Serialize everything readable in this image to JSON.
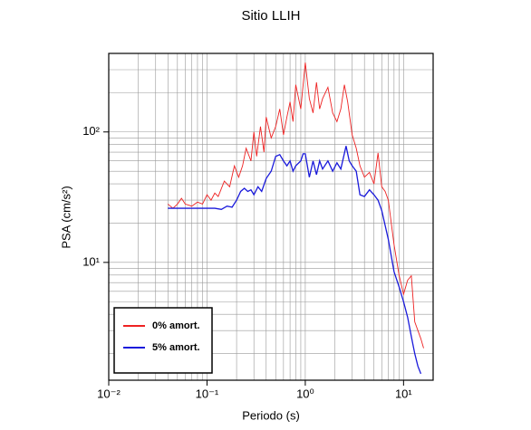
{
  "chart_data": {
    "type": "line",
    "title": "Sitio LLIH",
    "xlabel": "Periodo (s)",
    "ylabel": "PSA (cm/s²)",
    "xscale": "log",
    "yscale": "log",
    "grid": true,
    "legend": "lower left",
    "xlim": [
      0.01,
      20
    ],
    "ylim": [
      1.25,
      400
    ],
    "xticks": [
      {
        "value": 0.01,
        "label": "10⁻²"
      },
      {
        "value": 0.1,
        "label": "10⁻¹"
      },
      {
        "value": 1,
        "label": "10⁰"
      },
      {
        "value": 10,
        "label": "10¹"
      }
    ],
    "yticks": [
      {
        "value": 10,
        "label": "10¹"
      },
      {
        "value": 100,
        "label": "10²"
      }
    ],
    "minor_xticks": [
      0.02,
      0.03,
      0.04,
      0.05,
      0.06,
      0.07,
      0.08,
      0.09,
      0.2,
      0.3,
      0.4,
      0.5,
      0.6,
      0.7,
      0.8,
      0.9,
      2,
      3,
      4,
      5,
      6,
      7,
      8,
      9
    ],
    "minor_yticks": [
      2,
      3,
      4,
      5,
      6,
      7,
      8,
      9,
      20,
      30,
      40,
      50,
      60,
      70,
      80,
      90,
      200,
      300
    ],
    "series": [
      {
        "name": "0% amort.",
        "color": "#ee2222",
        "x": [
          0.04,
          0.045,
          0.05,
          0.055,
          0.06,
          0.07,
          0.08,
          0.09,
          0.1,
          0.11,
          0.12,
          0.13,
          0.15,
          0.17,
          0.19,
          0.21,
          0.23,
          0.25,
          0.28,
          0.3,
          0.32,
          0.35,
          0.38,
          0.4,
          0.45,
          0.5,
          0.55,
          0.6,
          0.65,
          0.7,
          0.75,
          0.8,
          0.9,
          1.0,
          1.1,
          1.2,
          1.3,
          1.4,
          1.5,
          1.7,
          1.9,
          2.1,
          2.3,
          2.5,
          2.7,
          3.0,
          3.3,
          3.6,
          4.0,
          4.5,
          5.0,
          5.5,
          6.0,
          6.5,
          7.0,
          8.0,
          9.0,
          10,
          11,
          12,
          13,
          15,
          16
        ],
        "values": [
          28,
          26,
          28,
          31,
          28,
          27,
          29,
          28,
          33,
          30,
          34,
          32,
          42,
          38,
          55,
          45,
          55,
          75,
          60,
          100,
          65,
          110,
          70,
          130,
          90,
          110,
          150,
          95,
          130,
          170,
          120,
          230,
          150,
          340,
          180,
          140,
          240,
          150,
          180,
          220,
          140,
          120,
          150,
          230,
          170,
          95,
          75,
          55,
          45,
          49,
          40,
          69,
          38,
          35,
          30,
          13.7,
          8,
          5.7,
          7.3,
          7.9,
          3.5,
          2.6,
          2.2
        ]
      },
      {
        "name": "5% amort.",
        "color": "#1a1adb",
        "x": [
          0.04,
          0.06,
          0.08,
          0.1,
          0.12,
          0.14,
          0.16,
          0.18,
          0.2,
          0.22,
          0.24,
          0.26,
          0.28,
          0.3,
          0.33,
          0.36,
          0.4,
          0.45,
          0.5,
          0.55,
          0.6,
          0.65,
          0.7,
          0.75,
          0.8,
          0.9,
          0.95,
          1.0,
          1.1,
          1.2,
          1.3,
          1.4,
          1.5,
          1.7,
          1.9,
          2.1,
          2.3,
          2.6,
          2.8,
          3.0,
          3.3,
          3.6,
          4.0,
          4.5,
          5.0,
          5.5,
          6.0,
          7.0,
          8.0,
          9.0,
          10,
          11,
          12,
          13,
          14,
          15
        ],
        "values": [
          26,
          26,
          26,
          26,
          26,
          25.5,
          27,
          26.5,
          30,
          35,
          37,
          35,
          36,
          33,
          38,
          35,
          44,
          50,
          65,
          67,
          60,
          55,
          60,
          50,
          55,
          60,
          68,
          68,
          45,
          60,
          47,
          60,
          52,
          60,
          50,
          58,
          52,
          78,
          60,
          55,
          50,
          33,
          32,
          36,
          33,
          30,
          25,
          15,
          8.5,
          6.5,
          5,
          3.8,
          2.7,
          2,
          1.6,
          1.4
        ]
      }
    ]
  }
}
